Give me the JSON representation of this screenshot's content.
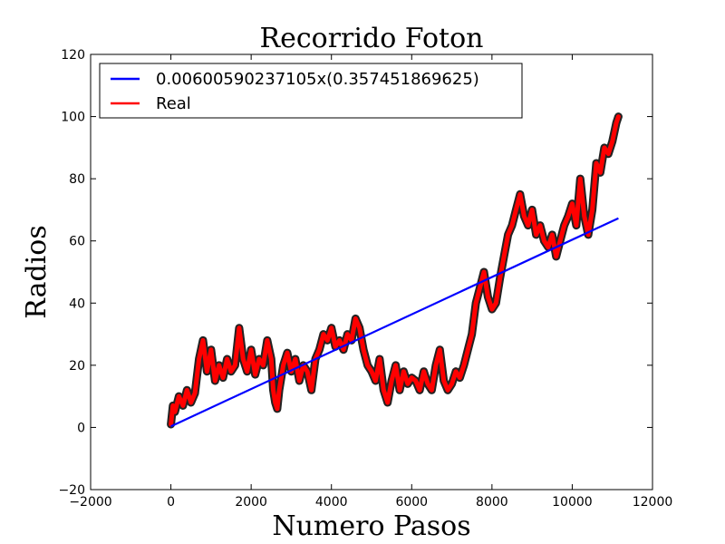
{
  "chart_data": {
    "type": "line",
    "title": "Recorrido Foton",
    "xlabel": "Numero Pasos",
    "ylabel": "Radios",
    "xlim": [
      -2000,
      12000
    ],
    "ylim": [
      -20,
      120
    ],
    "xticks": [
      -2000,
      0,
      2000,
      4000,
      6000,
      8000,
      10000,
      12000
    ],
    "yticks": [
      -20,
      0,
      20,
      40,
      60,
      80,
      100,
      120
    ],
    "xtick_labels": [
      "−2000",
      "0",
      "2000",
      "4000",
      "6000",
      "8000",
      "10000",
      "12000"
    ],
    "ytick_labels": [
      "−20",
      "0",
      "20",
      "40",
      "60",
      "80",
      "100",
      "120"
    ],
    "grid": false,
    "legend_position": "top-left",
    "series": [
      {
        "name": "0.00600590237105x(0.357451869625)",
        "color": "#0000ff",
        "x": [
          0,
          11150
        ],
        "y": [
          0.36,
          67.3
        ]
      },
      {
        "name": "Real",
        "color": "#ff0000",
        "x": [
          0,
          50,
          100,
          200,
          300,
          400,
          500,
          600,
          700,
          800,
          900,
          1000,
          1100,
          1200,
          1300,
          1400,
          1500,
          1600,
          1700,
          1800,
          1900,
          2000,
          2100,
          2200,
          2300,
          2400,
          2500,
          2550,
          2600,
          2650,
          2700,
          2800,
          2900,
          3000,
          3100,
          3200,
          3300,
          3400,
          3500,
          3600,
          3700,
          3800,
          3900,
          4000,
          4100,
          4200,
          4300,
          4400,
          4500,
          4600,
          4700,
          4800,
          4900,
          5000,
          5100,
          5200,
          5300,
          5400,
          5500,
          5600,
          5700,
          5800,
          5900,
          6000,
          6100,
          6200,
          6300,
          6400,
          6500,
          6600,
          6700,
          6800,
          6900,
          7000,
          7100,
          7200,
          7300,
          7400,
          7500,
          7600,
          7700,
          7800,
          7900,
          8000,
          8100,
          8200,
          8300,
          8400,
          8500,
          8600,
          8700,
          8800,
          8900,
          9000,
          9100,
          9200,
          9300,
          9400,
          9500,
          9600,
          9700,
          9800,
          9900,
          10000,
          10100,
          10200,
          10300,
          10400,
          10500,
          10600,
          10700,
          10800,
          10900,
          11000,
          11100,
          11150
        ],
        "y": [
          1,
          7,
          5,
          10,
          7,
          12,
          8,
          11,
          22,
          28,
          18,
          25,
          15,
          20,
          16,
          22,
          18,
          20,
          32,
          22,
          18,
          25,
          17,
          22,
          20,
          28,
          22,
          12,
          8,
          6,
          12,
          20,
          24,
          18,
          22,
          15,
          20,
          18,
          12,
          22,
          25,
          30,
          28,
          32,
          26,
          28,
          25,
          30,
          28,
          35,
          32,
          25,
          20,
          18,
          15,
          22,
          12,
          8,
          15,
          20,
          12,
          18,
          14,
          16,
          15,
          12,
          18,
          14,
          12,
          20,
          25,
          15,
          12,
          14,
          18,
          16,
          20,
          25,
          30,
          40,
          45,
          50,
          42,
          38,
          40,
          48,
          55,
          62,
          65,
          70,
          75,
          68,
          65,
          70,
          62,
          65,
          60,
          58,
          62,
          55,
          60,
          65,
          68,
          72,
          65,
          80,
          68,
          62,
          70,
          85,
          82,
          90,
          88,
          92,
          98,
          100
        ]
      }
    ]
  }
}
